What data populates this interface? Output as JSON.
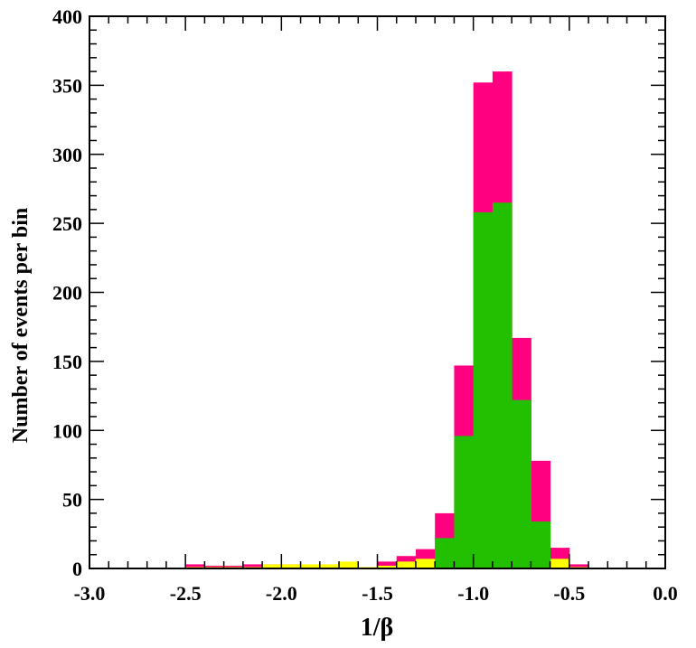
{
  "chart_data": {
    "type": "bar",
    "title": "",
    "xlabel": "1/β",
    "ylabel": "Number of events per bin",
    "xlim": [
      -3.0,
      0.0
    ],
    "ylim": [
      0,
      400
    ],
    "bin_width": 0.1,
    "xticks": [
      "-3.0",
      "-2.5",
      "-2.0",
      "-1.5",
      "-1.0",
      "-0.5",
      "0.0"
    ],
    "yticks": [
      "0",
      "50",
      "100",
      "150",
      "200",
      "250",
      "300",
      "350",
      "400"
    ],
    "grid": false,
    "legend": "none",
    "bin_left_edges": [
      -2.5,
      -2.4,
      -2.3,
      -2.2,
      -2.1,
      -2.0,
      -1.9,
      -1.8,
      -1.7,
      -1.6,
      -1.5,
      -1.4,
      -1.3,
      -1.2,
      -1.1,
      -1.0,
      -0.9,
      -0.8,
      -0.7,
      -0.6,
      -0.5
    ],
    "series": [
      {
        "color": "#ff0080",
        "values": [
          3,
          2,
          2,
          3,
          3,
          3,
          2,
          2,
          4,
          1,
          5,
          9,
          14,
          40,
          147,
          352,
          360,
          167,
          78,
          15,
          3
        ]
      },
      {
        "color": "#ffff00",
        "values": [
          1,
          1,
          1,
          1,
          3,
          3,
          3,
          3,
          5,
          1,
          2,
          5,
          7,
          2,
          1,
          0,
          0,
          0,
          2,
          7,
          1
        ]
      },
      {
        "color": "#22c000",
        "values": [
          0,
          0,
          0,
          0,
          0,
          0,
          0,
          0,
          0,
          0,
          0,
          0,
          0,
          22,
          96,
          258,
          265,
          122,
          34,
          0,
          0
        ]
      }
    ]
  }
}
